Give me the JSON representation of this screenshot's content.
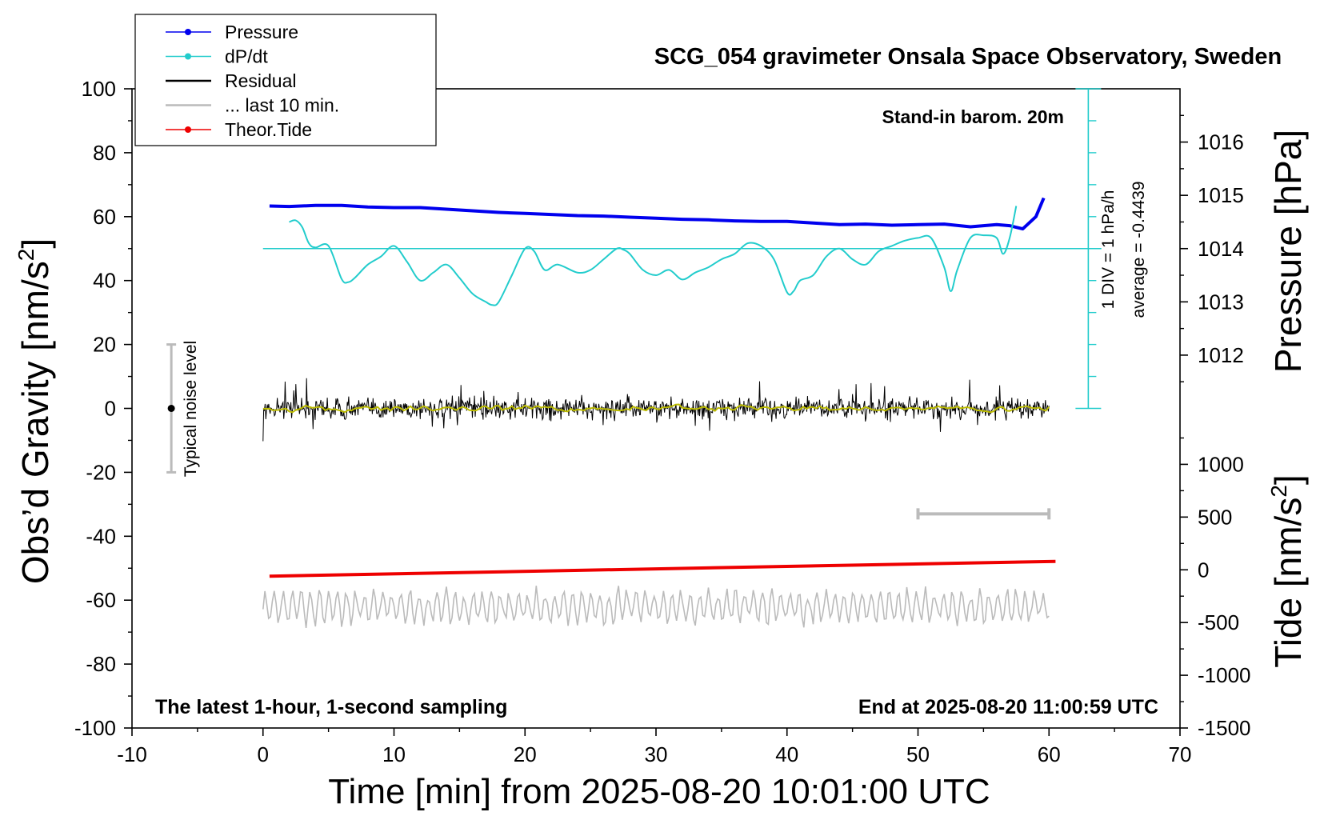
{
  "chart_data": {
    "type": "line",
    "title": "SCG_054 gravimeter Onsala Space Observatory, Sweden",
    "xlabel": "Time [min] from 2025-08-20 10:01:00 UTC",
    "ylabel": "Obs’d Gravity [nm/s",
    "ylabel_sup": "2",
    "ylabel_end": "]",
    "y2label": "Pressure [hPa]",
    "y3label": "Tide [nm/s",
    "y3label_sup": "2",
    "y3label_end": "]",
    "xlim": [
      -10,
      70
    ],
    "ylim": [
      -100,
      100
    ],
    "xticks": [
      -10,
      0,
      10,
      20,
      30,
      40,
      50,
      60,
      70
    ],
    "yticks": [
      -100,
      -80,
      -60,
      -40,
      -20,
      0,
      20,
      40,
      60,
      80,
      100
    ],
    "pressure_axis": {
      "range": [
        1011,
        1017
      ],
      "ticks": [
        1012,
        1013,
        1014,
        1015,
        1016
      ]
    },
    "tide_axis": {
      "range": [
        -1500,
        1500
      ],
      "ticks": [
        -1500,
        -1000,
        -500,
        0,
        500,
        1000
      ]
    },
    "annotations": {
      "stand_in": "Stand-in barom. 20m",
      "div": "1 DIV = 1 hPa/h",
      "average": "average = -0.4439",
      "noise": "Typical noise level",
      "latest": "The latest 1-hour, 1-second sampling",
      "end": "End at 2025-08-20 11:00:59 UTC"
    },
    "legend": {
      "position": "top-left",
      "entries": [
        {
          "name": "Pressure",
          "color": "#0000ee",
          "marker": true
        },
        {
          "name": "dP/dt",
          "color": "#22cccc",
          "marker": true
        },
        {
          "name": "Residual",
          "color": "#000000",
          "marker": false
        },
        {
          "name": "... last 10 min.",
          "color": "#bbbbbb",
          "marker": false
        },
        {
          "name": "Theor.Tide",
          "color": "#ee0000",
          "marker": true
        }
      ]
    },
    "series": [
      {
        "name": "Pressure",
        "axis": "pressure",
        "color": "#0000ee",
        "x": [
          0.5,
          2,
          4,
          6,
          8,
          10,
          12,
          14,
          16,
          18,
          20,
          22,
          24,
          26,
          28,
          30,
          32,
          34,
          36,
          38,
          40,
          42,
          44,
          46,
          48,
          50,
          52,
          54,
          55,
          56,
          57,
          58,
          59,
          59.6
        ],
        "y": [
          1014.8,
          1014.79,
          1014.81,
          1014.81,
          1014.78,
          1014.77,
          1014.77,
          1014.74,
          1014.71,
          1014.68,
          1014.66,
          1014.64,
          1014.62,
          1014.61,
          1014.59,
          1014.57,
          1014.55,
          1014.54,
          1014.52,
          1014.51,
          1014.51,
          1014.48,
          1014.45,
          1014.46,
          1014.44,
          1014.45,
          1014.46,
          1014.41,
          1014.43,
          1014.45,
          1014.43,
          1014.37,
          1014.6,
          1014.95
        ]
      },
      {
        "name": "dP/dt",
        "axis": "dpdt",
        "color": "#22cccc",
        "reference_level": 1014,
        "x": [
          2,
          2.5,
          3,
          3.5,
          4,
          5,
          6,
          6.5,
          7,
          8,
          9,
          10,
          11,
          12,
          13,
          14,
          15,
          16,
          17,
          17.5,
          18,
          19,
          20,
          20.7,
          21.5,
          22.5,
          24,
          25,
          26,
          27,
          27.5,
          28,
          29,
          30,
          31,
          32,
          33,
          34,
          35,
          36,
          37,
          38,
          39,
          40,
          40.5,
          41,
          42,
          43,
          44,
          45,
          46,
          47,
          48,
          49,
          50,
          51,
          52,
          52.5,
          53,
          54,
          55,
          56,
          56.5,
          57,
          57.5
        ],
        "y": [
          1014.5,
          1014.53,
          1014.4,
          1014.1,
          1014.02,
          1014.05,
          1013.43,
          1013.37,
          1013.45,
          1013.7,
          1013.85,
          1014.05,
          1013.75,
          1013.4,
          1013.55,
          1013.7,
          1013.45,
          1013.15,
          1013.0,
          1012.94,
          1013.0,
          1013.5,
          1014.0,
          1013.95,
          1013.6,
          1013.7,
          1013.55,
          1013.6,
          1013.8,
          1014.0,
          1013.98,
          1013.9,
          1013.6,
          1013.5,
          1013.6,
          1013.42,
          1013.55,
          1013.65,
          1013.8,
          1013.9,
          1014.1,
          1014.05,
          1013.8,
          1013.18,
          1013.2,
          1013.4,
          1013.5,
          1013.85,
          1014.0,
          1013.8,
          1013.7,
          1013.95,
          1014.05,
          1014.15,
          1014.2,
          1014.2,
          1013.65,
          1013.2,
          1013.6,
          1014.2,
          1014.25,
          1014.2,
          1013.9,
          1014.2,
          1014.8
        ]
      },
      {
        "name": "Residual",
        "axis": "gravity",
        "color": "#000000",
        "x_range": [
          0,
          60
        ],
        "level": 0,
        "spread": 7
      },
      {
        "name": "Residual (smoothed)",
        "axis": "gravity",
        "color": "#bbbb00",
        "x_range": [
          0,
          60
        ],
        "level": 0,
        "spread": 1.5
      },
      {
        "name": "... last 10 min.",
        "axis": "gravity",
        "color": "#bbbbbb",
        "x_range": [
          0,
          60
        ],
        "level": -62,
        "spread": 5
      },
      {
        "name": "Theor.Tide",
        "axis": "tide",
        "color": "#ee0000",
        "x": [
          0.5,
          60.5
        ],
        "y": [
          -60,
          80
        ]
      }
    ],
    "noise_bar": {
      "x": -7,
      "y_range": [
        -20,
        20
      ],
      "center": 0
    },
    "last10_bracket": {
      "x_range": [
        50,
        60
      ],
      "y": -33
    },
    "dpdt_scale": {
      "x": 63,
      "y_top": 100,
      "y_bottom": 0
    }
  }
}
